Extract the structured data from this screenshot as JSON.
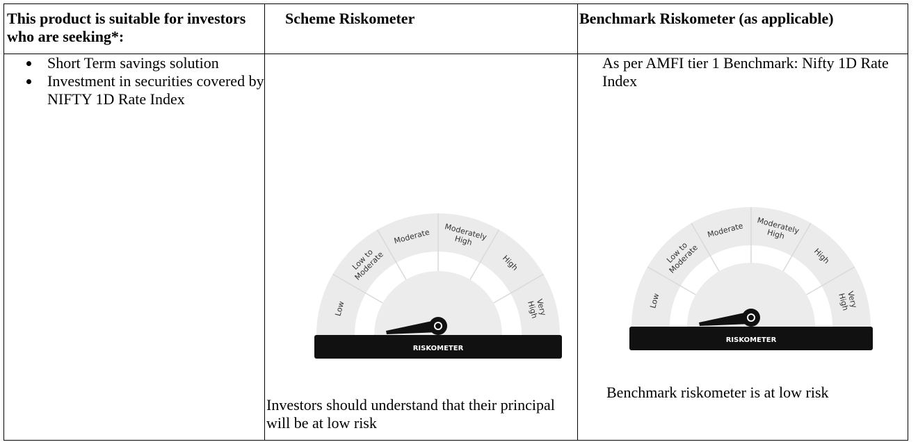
{
  "header": {
    "col1": "This product is suitable for investors who are seeking*:",
    "col2": "Scheme Riskometer",
    "col3": "Benchmark Riskometer (as applicable)"
  },
  "suitability": [
    "Short Term savings solution",
    "Investment in securities covered by NIFTY 1D Rate Index"
  ],
  "benchmark_note": "As per AMFI tier 1 Benchmark: Nifty 1D Rate Index",
  "meters": [
    {
      "labels": [
        [
          "Low"
        ],
        [
          "Low to",
          "Moderate"
        ],
        [
          "Moderate"
        ],
        [
          "Moderately",
          "High"
        ],
        [
          "High"
        ],
        [
          "Very",
          "High"
        ]
      ],
      "bar_label": "RISKOMETER",
      "caption": "Investors should understand that their principal will be at low risk"
    },
    {
      "labels": [
        [
          "Low"
        ],
        [
          "Low to",
          "Moderate"
        ],
        [
          "Moderate"
        ],
        [
          "Moderately",
          "High"
        ],
        [
          "High"
        ],
        [
          "Very",
          "High"
        ]
      ],
      "bar_label": "RISKOMETER",
      "caption": "Benchmark riskometer is at low risk"
    }
  ]
}
